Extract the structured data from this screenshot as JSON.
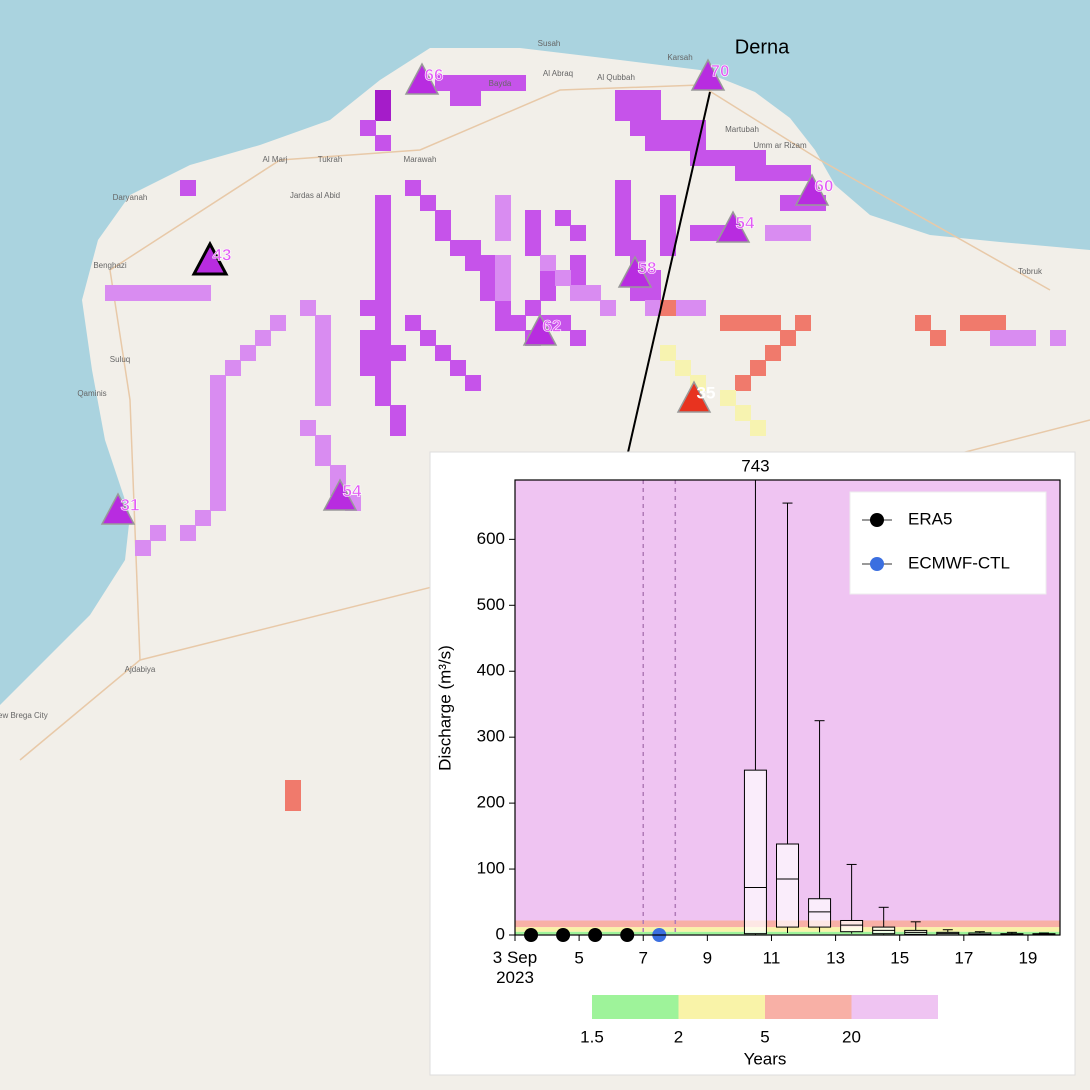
{
  "map": {
    "places": [
      "Susah",
      "Bayda",
      "Al Abraq",
      "Al Qubbah",
      "Karsah",
      "Al Marj",
      "Tukrah",
      "Marawah",
      "Martubah",
      "Umm ar Rizam",
      "Daryanah",
      "Benghazi",
      "Jardas al Abid",
      "Suluq",
      "Qaminis",
      "Tobruk",
      "Ajdabiya",
      "New Brega City"
    ],
    "annotation": "Derna",
    "stations": [
      {
        "label": 66
      },
      {
        "label": 70
      },
      {
        "label": 60
      },
      {
        "label": 54
      },
      {
        "label": 58
      },
      {
        "label": 62
      },
      {
        "label": 35
      },
      {
        "label": 43
      },
      {
        "label": 31
      },
      {
        "label": 54
      }
    ]
  },
  "chart_data": {
    "type": "box",
    "y_label": "Discharge (m³/s)",
    "xlim": [
      3,
      20
    ],
    "xticks": [
      {
        "value": 3,
        "label": "3 Sep 2023"
      },
      5,
      7,
      9,
      11,
      13,
      15,
      17,
      19
    ],
    "ylim": [
      0,
      690
    ],
    "yticks": [
      0,
      100,
      200,
      300,
      400,
      500,
      600
    ],
    "dashed_lines": [
      7,
      8
    ],
    "return_levels": [
      1,
      5,
      12,
      22
    ],
    "band_colors": [
      "#9ef39a",
      "#f9f3a8",
      "#f8b0a6",
      "#efc4f2"
    ],
    "boxes": {
      "x": [
        10.5,
        11.5,
        12.5,
        13.5,
        14.5,
        15.5,
        16.5,
        17.5,
        18.5,
        19.5
      ],
      "low": [
        0,
        3,
        4,
        2,
        1,
        0,
        0,
        0,
        0,
        0
      ],
      "q1": [
        2,
        12,
        12,
        5,
        2,
        1,
        0,
        0,
        0,
        0
      ],
      "median": [
        72,
        85,
        35,
        15,
        7,
        4,
        2,
        1,
        1,
        1
      ],
      "q3": [
        250,
        138,
        55,
        22,
        12,
        7,
        4,
        3,
        2,
        2
      ],
      "high": [
        743,
        655,
        325,
        107,
        42,
        20,
        8,
        5,
        4,
        3
      ]
    },
    "series": [
      {
        "name": "ERA5",
        "color": "#000000",
        "x": [
          3.5,
          4.5,
          5.5,
          6.5
        ],
        "values": [
          0,
          0,
          0,
          0
        ]
      },
      {
        "name": "ECMWF-CTL",
        "color": "#3b6fe0",
        "x": [
          7.5
        ],
        "values": [
          0
        ]
      }
    ],
    "colorbar": {
      "ticks": [
        1.5,
        2,
        5,
        20
      ],
      "label": "Years",
      "colors": [
        "#9ef39a",
        "#f9f3a8",
        "#f8b0a6",
        "#efc4f2"
      ]
    }
  }
}
